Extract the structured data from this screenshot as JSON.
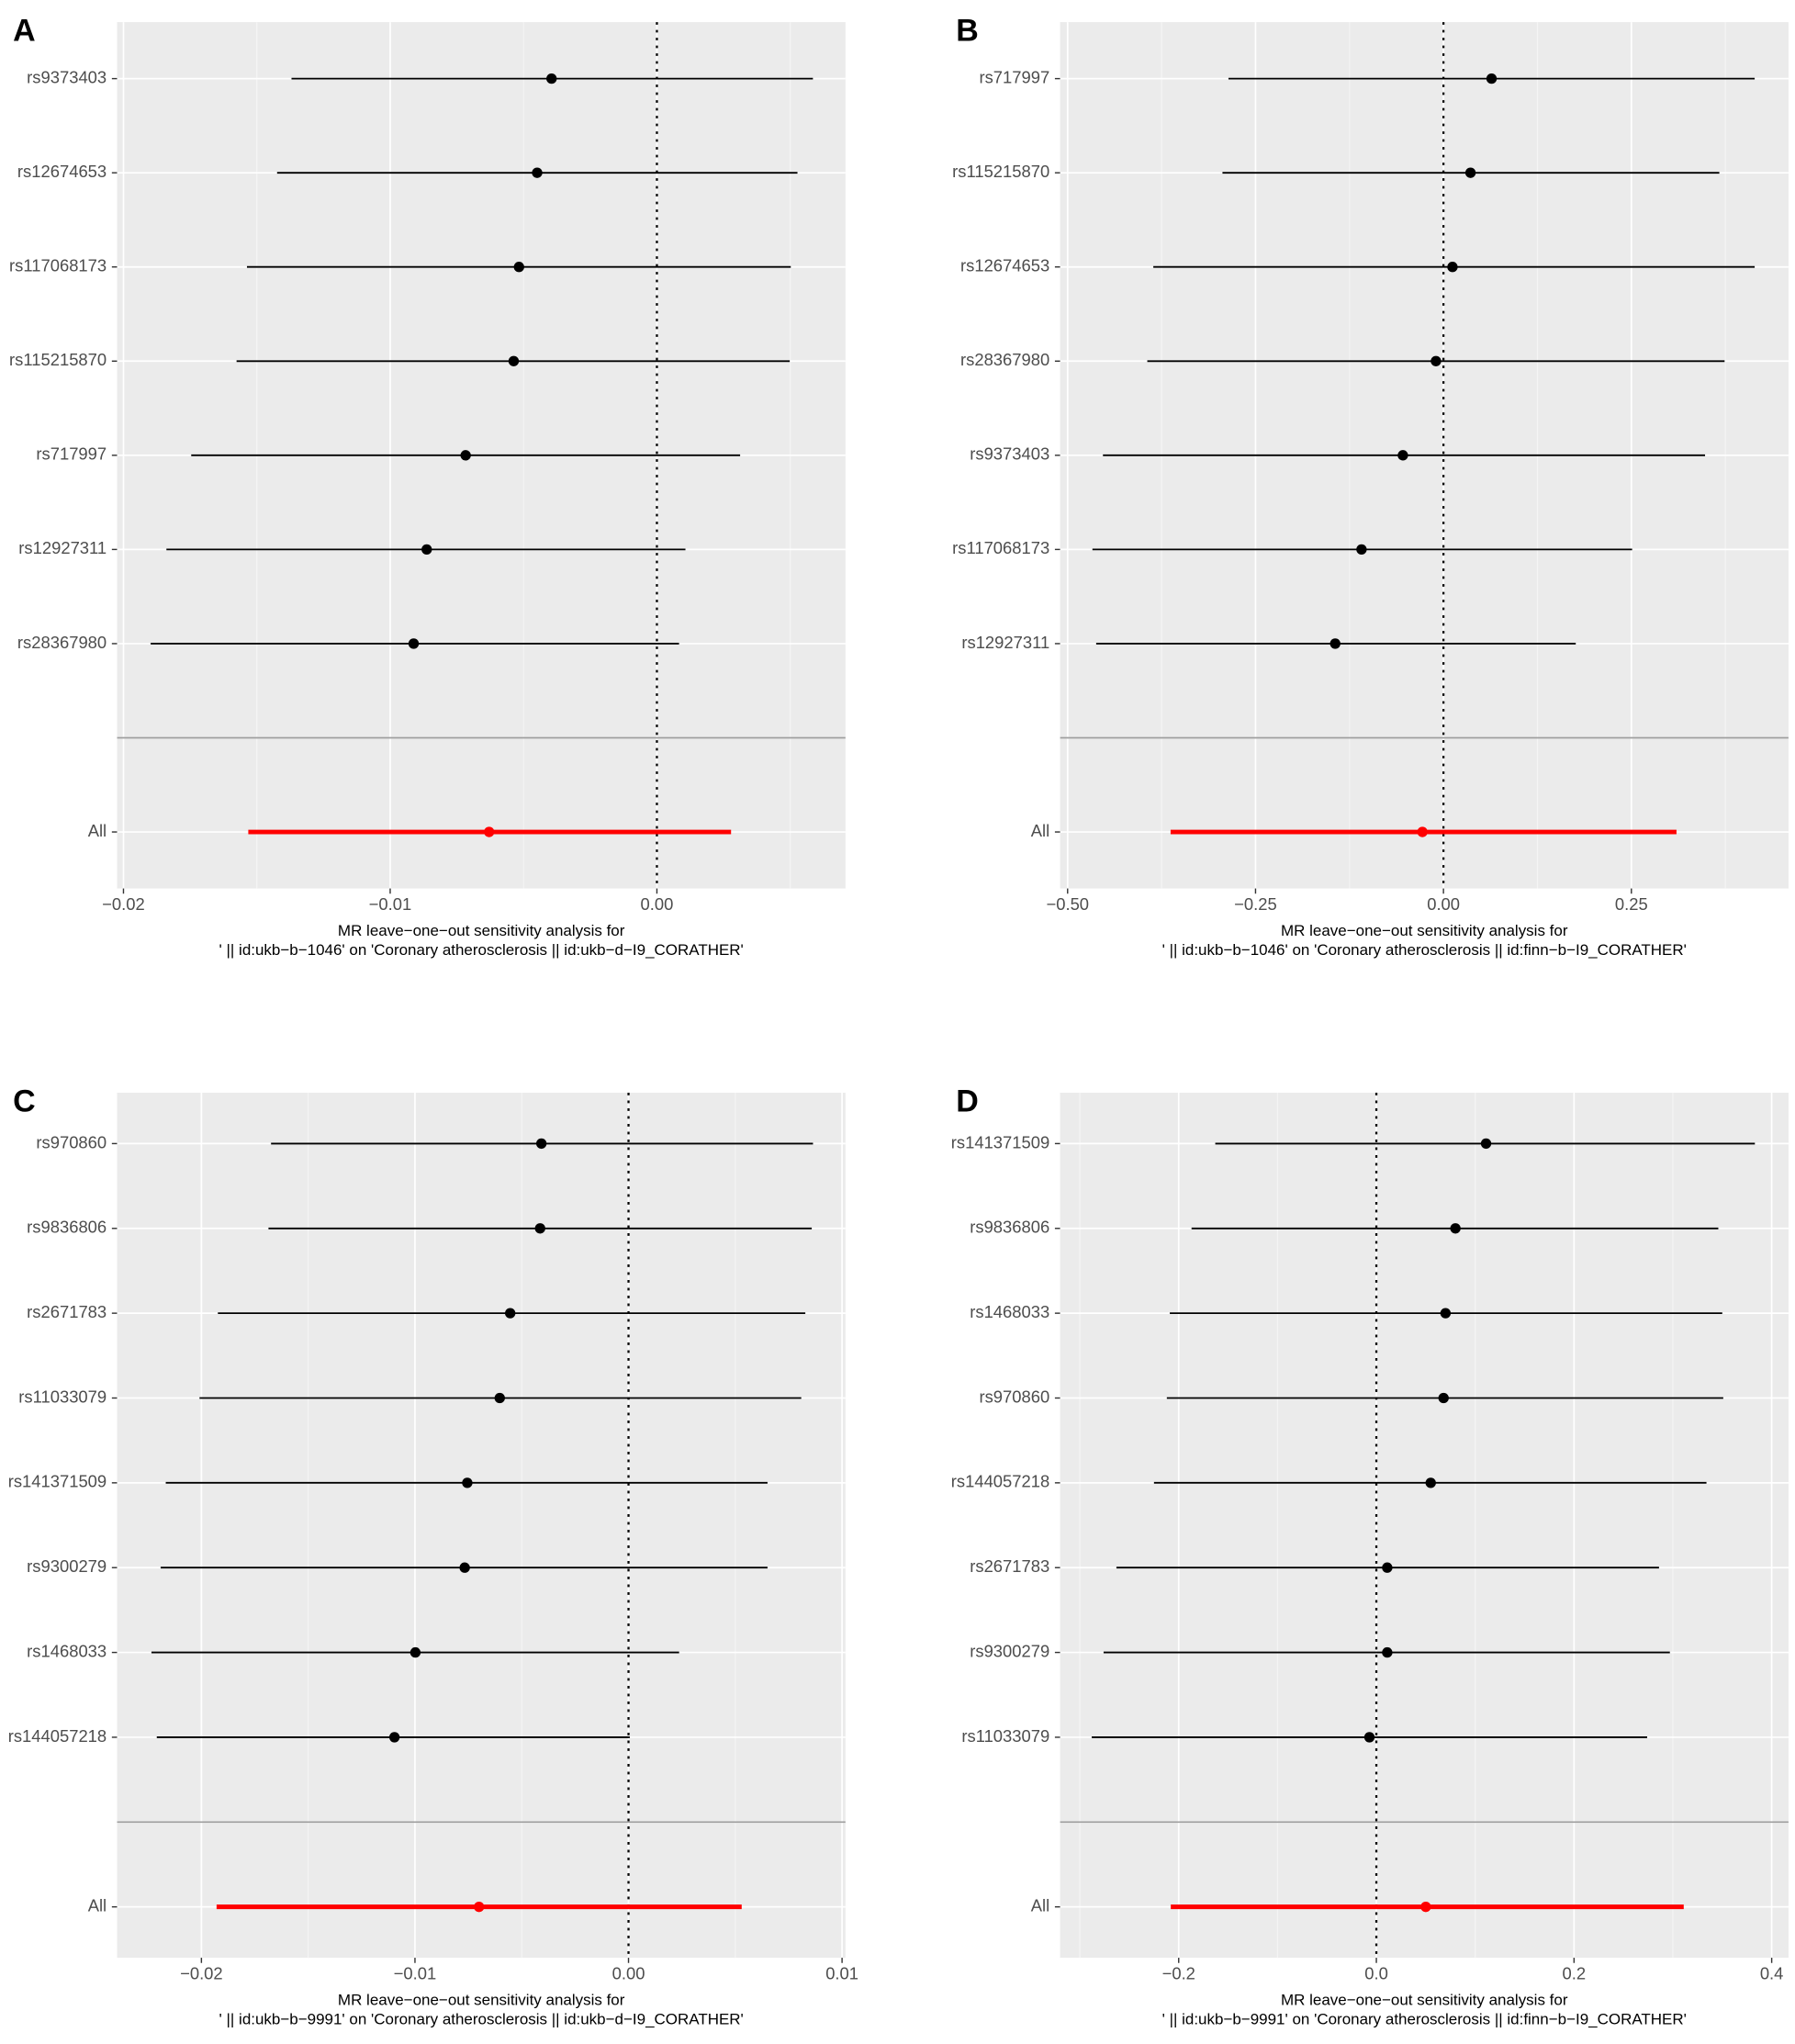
{
  "chart_data": [
    {
      "type": "forest",
      "panel": "A",
      "categories": [
        "rs9373403",
        "rs12674653",
        "rs117068173",
        "rs115215870",
        "rs717997",
        "rs12927311",
        "rs28367980",
        "All"
      ],
      "values": [
        -0.00395,
        -0.00449,
        -0.00517,
        -0.00537,
        -0.00717,
        -0.00863,
        -0.00912,
        -0.00629
      ],
      "lower": [
        -0.0137,
        -0.01424,
        -0.01537,
        -0.01576,
        -0.01746,
        -0.01839,
        -0.01898,
        -0.01532
      ],
      "upper": [
        0.00585,
        0.00527,
        0.00502,
        0.00498,
        0.00312,
        0.00107,
        0.00083,
        0.00278
      ],
      "color": "#000000",
      "summary_color": "#ff0000",
      "ref_line": 0,
      "xlim": [
        -0.02024,
        0.00707
      ],
      "xticks": [
        {
          "value": -0.02,
          "label": "−0.02"
        },
        {
          "value": -0.01,
          "label": "−0.01"
        },
        {
          "value": 0,
          "label": "0.00"
        }
      ],
      "xlabel": [
        "MR leave−one−out sensitivity analysis for",
        "' || id:ukb−b−1046' on 'Coronary atherosclerosis || id:ukb−d−I9_CORATHER'"
      ]
    },
    {
      "type": "forest",
      "panel": "B",
      "categories": [
        "rs717997",
        "rs115215870",
        "rs12674653",
        "rs28367980",
        "rs9373403",
        "rs117068173",
        "rs12927311",
        "All"
      ],
      "values": [
        0.064,
        0.036,
        0.012,
        -0.01,
        -0.054,
        -0.109,
        -0.144,
        -0.028
      ],
      "lower": [
        -0.286,
        -0.294,
        -0.386,
        -0.394,
        -0.453,
        -0.467,
        -0.462,
        -0.363
      ],
      "upper": [
        0.414,
        0.367,
        0.414,
        0.374,
        0.348,
        0.251,
        0.176,
        0.31
      ],
      "color": "#000000",
      "summary_color": "#ff0000",
      "ref_line": 0,
      "xlim": [
        -0.51,
        0.459
      ],
      "xticks": [
        {
          "value": -0.5,
          "label": "−0.50"
        },
        {
          "value": -0.25,
          "label": "−0.25"
        },
        {
          "value": 0,
          "label": "0.00"
        },
        0.25
      ],
      "xlabel": [
        "MR leave−one−out sensitivity analysis for",
        "' || id:ukb−b−1046' on 'Coronary atherosclerosis || id:finn−b−I9_CORATHER'"
      ]
    },
    {
      "type": "forest",
      "panel": "C",
      "categories": [
        "rs970860",
        "rs9836806",
        "rs2671783",
        "rs11033079",
        "rs141371509",
        "rs9300279",
        "rs1468033",
        "rs144057218",
        "All"
      ],
      "values": [
        -0.00408,
        -0.00414,
        -0.00554,
        -0.00603,
        -0.00755,
        -0.00767,
        -0.00998,
        -0.01096,
        -0.007
      ],
      "lower": [
        -0.01674,
        -0.01686,
        -0.01923,
        -0.02009,
        -0.02167,
        -0.02191,
        -0.02234,
        -0.02209,
        -0.01929
      ],
      "upper": [
        0.00864,
        0.00858,
        0.00828,
        0.00809,
        0.00651,
        0.00651,
        0.00237,
        6e-05,
        0.0053
      ],
      "color": "#000000",
      "summary_color": "#ff0000",
      "ref_line": 0,
      "xlim": [
        -0.02395,
        0.01016
      ],
      "xticks": [
        {
          "value": -0.02,
          "label": "−0.02"
        },
        {
          "value": -0.01,
          "label": "−0.01"
        },
        {
          "value": 0,
          "label": "0.00"
        },
        0.01
      ],
      "xlabel": [
        "MR leave−one−out sensitivity analysis for",
        "' || id:ukb−b−9991' on 'Coronary atherosclerosis || id:ukb−d−I9_CORATHER'"
      ]
    },
    {
      "type": "forest",
      "panel": "D",
      "categories": [
        "rs141371509",
        "rs9836806",
        "rs1468033",
        "rs970860",
        "rs144057218",
        "rs2671783",
        "rs9300279",
        "rs11033079",
        "All"
      ],
      "values": [
        0.111,
        0.08,
        0.07,
        0.068,
        0.055,
        0.011,
        0.011,
        -0.007,
        0.05
      ],
      "lower": [
        -0.163,
        -0.187,
        -0.209,
        -0.212,
        -0.225,
        -0.263,
        -0.276,
        -0.288,
        -0.208
      ],
      "upper": [
        0.383,
        0.346,
        0.35,
        0.351,
        0.334,
        0.286,
        0.297,
        0.274,
        0.311
      ],
      "color": "#000000",
      "summary_color": "#ff0000",
      "ref_line": 0,
      "xlim": [
        -0.32,
        0.417
      ],
      "xticks": [
        {
          "value": -0.2,
          "label": "−0.2"
        },
        {
          "value": 0,
          "label": "0.0"
        },
        0.2,
        0.4
      ],
      "xlabel": [
        "MR leave−one−out sensitivity analysis for",
        "' || id:ukb−b−9991' on 'Coronary atherosclerosis || id:finn−b−I9_CORATHER'"
      ]
    }
  ]
}
